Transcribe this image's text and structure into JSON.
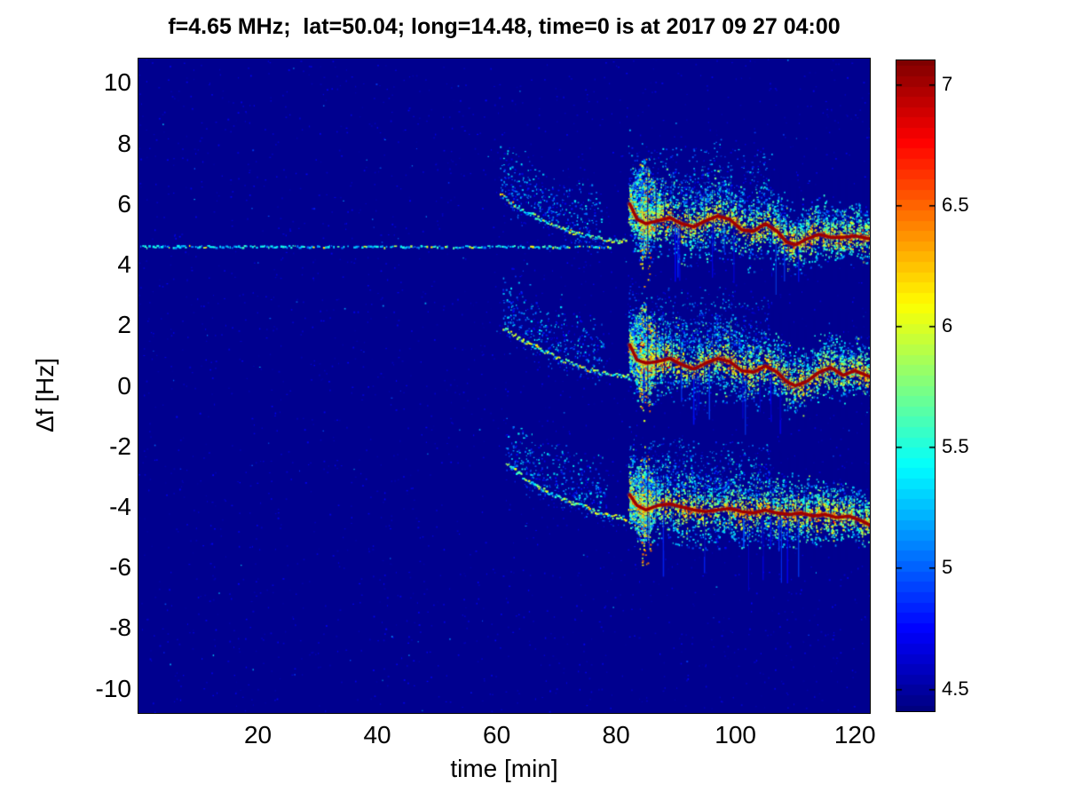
{
  "chart_data": {
    "type": "heatmap",
    "subtype": "doppler-shift-spectrogram",
    "title": "f=4.65 MHz;  lat=50.04; long=14.48, time=0 is at 2017 09 27 04:00",
    "xlabel": "time [min]",
    "ylabel": "Δf [Hz]",
    "xlim": [
      0,
      122.5
    ],
    "ylim": [
      -10.8,
      10.8
    ],
    "xticks": [
      20,
      40,
      60,
      80,
      100,
      120
    ],
    "yticks": [
      10,
      8,
      6,
      4,
      2,
      0,
      -2,
      -4,
      -6,
      -8,
      -10
    ],
    "grid": false,
    "colormap": "jet",
    "colorbar": {
      "min": 4.41,
      "max": 7.1,
      "ticks": [
        7,
        6.5,
        6,
        5.5,
        5,
        4.5
      ],
      "position": "right",
      "levels": 64
    },
    "background_value": 4.45,
    "carrier_line": {
      "df": 4.62,
      "t_start": 0.3,
      "t_end": 79,
      "style": "intermittent dotted horizontal line",
      "value_range": [
        5.0,
        6.2
      ]
    },
    "bands": [
      {
        "name": "upper-doppler-band",
        "branch": [
          [
            60.5,
            6.35
          ],
          [
            64,
            5.85
          ],
          [
            68,
            5.45
          ],
          [
            73,
            5.05
          ],
          [
            78,
            4.85
          ],
          [
            81.5,
            4.8
          ]
        ],
        "burst": {
          "t": 84.5,
          "df_lo": 4.3,
          "df_hi": 7.55
        },
        "cloud": {
          "t0": 82,
          "t1": 122.5,
          "lo": -1.35,
          "hi": 2.1
        },
        "trace": [
          [
            82.3,
            6.0
          ],
          [
            83.5,
            5.5
          ],
          [
            85,
            5.35
          ],
          [
            87,
            5.45
          ],
          [
            89,
            5.55
          ],
          [
            91,
            5.35
          ],
          [
            93,
            5.25
          ],
          [
            95,
            5.45
          ],
          [
            97,
            5.6
          ],
          [
            99,
            5.5
          ],
          [
            101,
            5.15
          ],
          [
            103,
            5.1
          ],
          [
            105,
            5.35
          ],
          [
            107,
            5.1
          ],
          [
            108.5,
            4.75
          ],
          [
            110,
            4.65
          ],
          [
            112,
            4.85
          ],
          [
            114,
            5.0
          ],
          [
            116,
            4.9
          ],
          [
            118,
            4.9
          ],
          [
            120,
            4.95
          ],
          [
            122.5,
            4.85
          ]
        ]
      },
      {
        "name": "middle-doppler-band",
        "branch": [
          [
            61,
            1.95
          ],
          [
            64.5,
            1.5
          ],
          [
            68.5,
            1.1
          ],
          [
            73,
            0.7
          ],
          [
            78,
            0.42
          ],
          [
            82,
            0.32
          ]
        ],
        "burst": {
          "t": 84.5,
          "df_lo": -0.6,
          "df_hi": 2.9
        },
        "cloud": {
          "t0": 82,
          "t1": 122.5,
          "lo": -1.35,
          "hi": 2.0
        },
        "trace": [
          [
            82.3,
            1.35
          ],
          [
            83.5,
            0.85
          ],
          [
            85,
            0.75
          ],
          [
            87,
            0.8
          ],
          [
            89,
            0.9
          ],
          [
            91,
            0.7
          ],
          [
            93,
            0.55
          ],
          [
            95,
            0.75
          ],
          [
            97,
            0.9
          ],
          [
            99,
            0.8
          ],
          [
            101,
            0.5
          ],
          [
            103,
            0.45
          ],
          [
            105,
            0.65
          ],
          [
            107,
            0.45
          ],
          [
            108.5,
            0.15
          ],
          [
            110,
            0.0
          ],
          [
            112,
            0.15
          ],
          [
            114,
            0.45
          ],
          [
            116,
            0.6
          ],
          [
            118,
            0.35
          ],
          [
            120,
            0.5
          ],
          [
            122.5,
            0.3
          ]
        ]
      },
      {
        "name": "lower-doppler-band",
        "branch": [
          [
            61.5,
            -2.55
          ],
          [
            65,
            -3.1
          ],
          [
            69,
            -3.55
          ],
          [
            73.5,
            -3.9
          ],
          [
            78,
            -4.25
          ],
          [
            81.5,
            -4.35
          ]
        ],
        "burst": {
          "t": 84.5,
          "df_lo": -5.3,
          "df_hi": -2.25
        },
        "cloud": {
          "t0": 82,
          "t1": 122.5,
          "lo": -1.25,
          "hi": 1.8
        },
        "trace": [
          [
            82.3,
            -3.6
          ],
          [
            83.5,
            -3.95
          ],
          [
            85,
            -4.1
          ],
          [
            87,
            -3.95
          ],
          [
            89,
            -3.9
          ],
          [
            91,
            -4.0
          ],
          [
            93,
            -4.1
          ],
          [
            95,
            -4.15
          ],
          [
            97,
            -4.1
          ],
          [
            99,
            -4.05
          ],
          [
            101,
            -4.15
          ],
          [
            103,
            -4.2
          ],
          [
            105,
            -4.1
          ],
          [
            107,
            -4.2
          ],
          [
            109,
            -4.25
          ],
          [
            111,
            -4.2
          ],
          [
            113,
            -4.3
          ],
          [
            115,
            -4.25
          ],
          [
            117,
            -4.35
          ],
          [
            119,
            -4.3
          ],
          [
            121,
            -4.45
          ],
          [
            122.5,
            -4.6
          ]
        ]
      }
    ],
    "gap_times": [
      85.2,
      86.6,
      88,
      89.3,
      90.7,
      92,
      93.4,
      94.7,
      96.2,
      97.6,
      99,
      100.3,
      101.8,
      103.2,
      104.5,
      106,
      107.4,
      108.8,
      110.2,
      111.6,
      113,
      114.4,
      115.8,
      117.2,
      118.6,
      120,
      121.4
    ],
    "annotations": [
      "quiet dark-blue background before ~60 min except an intermittent carrier echo near +4.6 Hz",
      "three scattered Doppler bands appear after ~60 min, separated by ~4.6 Hz",
      "each band: weak descending trace 60-80 min, strong burst ~83-87 min, then a dark-red ridge with surrounding scatter and vertical data gaps until ~122 min"
    ]
  },
  "colors": {
    "figure_background": "#ffffff",
    "axes_text": "#000000",
    "plot_background_fill": "#00008f",
    "trace_color": "#9e0000"
  }
}
